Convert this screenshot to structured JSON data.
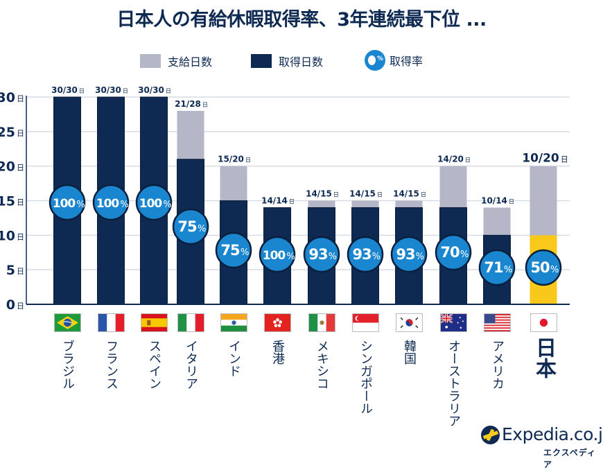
{
  "title": "日本人の有給休暇取得率、3年連続最下位 ...",
  "legend": {
    "granted": "支給日数",
    "taken": "取得日数",
    "rate": "取得率",
    "rate_symbol": "%"
  },
  "colors": {
    "granted": "#b5b6c8",
    "taken": "#0e2a52",
    "highlight_taken": "#f8c81b",
    "rate_circle": "#1a86d0",
    "grid": "#d7dbe3",
    "axis": "#0e2a52"
  },
  "logo": {
    "name": "Expedia.co.jp",
    "sub": "エクスペディア"
  },
  "chart_data": {
    "type": "bar",
    "stacked": true,
    "title": "日本人の有給休暇取得率、3年連続最下位 ...",
    "xlabel": "",
    "ylabel": "",
    "ylim": [
      0,
      30
    ],
    "yticks": [
      0,
      5,
      10,
      15,
      20,
      25,
      30
    ],
    "ytick_suffix": "日",
    "grid": true,
    "legend_position": "top-center",
    "categories": [
      "ブラジル",
      "フランス",
      "スペイン",
      "イタリア",
      "インド",
      "香港",
      "メキシコ",
      "シンガポール",
      "韓国",
      "オーストラリア",
      "アメリカ",
      "日本"
    ],
    "flags": [
      "brazil-flag",
      "france-flag",
      "spain-flag",
      "italy-flag",
      "india-flag",
      "hong-kong-flag",
      "mexico-flag",
      "singapore-flag",
      "south-korea-flag",
      "australia-flag",
      "usa-flag",
      "japan-flag"
    ],
    "highlight_category": "日本",
    "series": [
      {
        "name": "取得日数",
        "values": [
          30,
          30,
          30,
          21,
          15,
          14,
          14,
          14,
          14,
          14,
          10,
          10
        ]
      },
      {
        "name": "支給日数",
        "values": [
          30,
          30,
          30,
          28,
          20,
          14,
          15,
          15,
          15,
          20,
          14,
          20
        ]
      }
    ],
    "rates": [
      100,
      100,
      100,
      75,
      75,
      100,
      93,
      93,
      93,
      70,
      71,
      50
    ],
    "rate_suffix": "%",
    "value_labels": [
      "30/30",
      "30/30",
      "30/30",
      "21/28",
      "15/20",
      "14/14",
      "14/15",
      "14/15",
      "14/15",
      "14/20",
      "10/14",
      "10/20"
    ],
    "value_label_suffix": "日"
  }
}
